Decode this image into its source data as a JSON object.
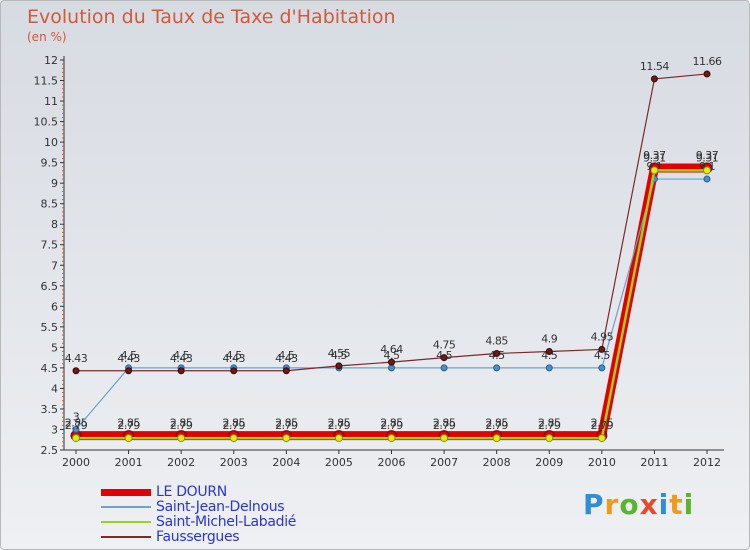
{
  "title": "Evolution du Taux de Taxe d'Habitation",
  "unit_label": "(en %)",
  "logo_text": "Proxiti",
  "chart_data": {
    "type": "line",
    "categories": [
      "2000",
      "2001",
      "2002",
      "2003",
      "2004",
      "2005",
      "2006",
      "2007",
      "2008",
      "2009",
      "2010",
      "2011",
      "2012"
    ],
    "y_ticks": [
      "2.5",
      "3",
      "3.5",
      "4",
      "4.5",
      "5",
      "5.5",
      "6",
      "6.5",
      "7",
      "7.5",
      "8",
      "8.5",
      "9",
      "9.5",
      "10",
      "10.5",
      "11",
      "11.5",
      "12"
    ],
    "ylim": [
      2.5,
      12
    ],
    "grid": false,
    "legend_position": "bottom-left",
    "series": [
      {
        "name": "LE DOURN",
        "color": "#e30000",
        "values": [
          2.85,
          2.85,
          2.85,
          2.85,
          2.85,
          2.85,
          2.85,
          2.85,
          2.85,
          2.85,
          2.85,
          9.37,
          9.37
        ],
        "labels": [
          "2.85",
          "2.85",
          "2.85",
          "2.85",
          "2.85",
          "2.85",
          "2.85",
          "2.85",
          "2.85",
          "2.85",
          "2.85",
          "9.37",
          "9.37"
        ]
      },
      {
        "name": "Saint-Jean-Delnous",
        "color": "#6ea2c8",
        "values": [
          3,
          4.5,
          4.5,
          4.5,
          4.5,
          4.5,
          4.5,
          4.5,
          4.5,
          4.5,
          4.5,
          9.1,
          9.1
        ],
        "labels": [
          "3",
          "4.5",
          "4.5",
          "4.5",
          "4.5",
          "4.5",
          "4.5",
          "4.5",
          "4.5",
          "4.5",
          "4.5",
          "9.1",
          "9.1"
        ]
      },
      {
        "name": "Saint-Michel-Labadié",
        "color": "#9ad21c",
        "values": [
          2.79,
          2.79,
          2.79,
          2.79,
          2.79,
          2.79,
          2.79,
          2.79,
          2.79,
          2.79,
          2.79,
          9.31,
          9.31
        ],
        "labels": [
          "2.79",
          "2.79",
          "2.79",
          "2.79",
          "2.79",
          "2.79",
          "2.79",
          "2.79",
          "2.79",
          "2.79",
          "2.79",
          "9.31",
          "9.31"
        ]
      },
      {
        "name": "Faussergues",
        "color": "#7a2a2a",
        "values": [
          4.43,
          4.43,
          4.43,
          4.43,
          4.43,
          4.55,
          4.64,
          4.75,
          4.85,
          4.9,
          4.95,
          11.54,
          11.66
        ],
        "labels": [
          "4.43",
          "4.43",
          "4.43",
          "4.43",
          "4.43",
          "4.55",
          "4.64",
          "4.75",
          "4.85",
          "4.9",
          "4.95",
          "11.54",
          "11.66"
        ]
      }
    ]
  }
}
